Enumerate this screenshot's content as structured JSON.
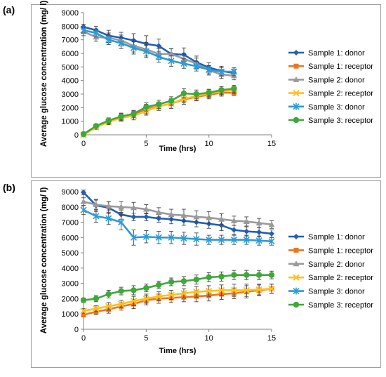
{
  "figure": {
    "panels": [
      {
        "label": "(a)"
      },
      {
        "label": "(b)"
      }
    ]
  },
  "colors": {
    "sample1_donor": "#1f5fb8",
    "sample1_receptor": "#f07422",
    "sample2_donor": "#9a9a9a",
    "sample2_receptor": "#ffc01f",
    "sample3_donor": "#2c9ad6",
    "sample3_receptor": "#3ea83a",
    "errorbar": "#444444",
    "frame": "#a0a0a0"
  },
  "chart_data": [
    {
      "type": "line",
      "panel": "(a)",
      "xlabel": "Time (hrs)",
      "ylabel": "Average glucose concentration (mg/ l)",
      "xlim": [
        0,
        15
      ],
      "ylim": [
        0,
        9000
      ],
      "xticks": [
        0,
        5,
        10,
        15
      ],
      "yticks": [
        0,
        1000,
        2000,
        3000,
        4000,
        5000,
        6000,
        7000,
        8000,
        9000
      ],
      "legend_position": "right",
      "series": [
        {
          "name": "Sample 1: donor",
          "marker": "diamond",
          "x": [
            0,
            1,
            2,
            3,
            4,
            5,
            6,
            7,
            8,
            9,
            10,
            11,
            12
          ],
          "y": [
            7950,
            7700,
            7300,
            7150,
            6950,
            6700,
            6550,
            5950,
            5900,
            5350,
            4950,
            4700,
            4550
          ],
          "err": [
            200,
            300,
            400,
            400,
            500,
            600,
            500,
            400,
            500,
            450,
            350,
            350,
            300
          ]
        },
        {
          "name": "Sample 1: receptor",
          "marker": "square",
          "x": [
            0,
            1,
            2,
            3,
            4,
            5,
            6,
            7,
            8,
            9,
            10,
            11,
            12
          ],
          "y": [
            50,
            600,
            1000,
            1300,
            1500,
            1900,
            2100,
            2300,
            2600,
            2800,
            2950,
            3100,
            3100
          ],
          "err": [
            80,
            150,
            200,
            250,
            250,
            350,
            300,
            350,
            350,
            300,
            300,
            250,
            200
          ]
        },
        {
          "name": "Sample 2: donor",
          "marker": "triangle",
          "x": [
            0,
            1,
            2,
            3,
            4,
            5,
            6,
            7,
            8,
            9,
            10,
            11,
            12
          ],
          "y": [
            7600,
            7200,
            7150,
            6950,
            6550,
            6300,
            5950,
            5950,
            5600,
            5250,
            4750,
            4450,
            4350
          ],
          "err": [
            300,
            300,
            350,
            400,
            450,
            500,
            400,
            400,
            400,
            400,
            350,
            300,
            300
          ]
        },
        {
          "name": "Sample 2: receptor",
          "marker": "x",
          "x": [
            0,
            1,
            2,
            3,
            4,
            5,
            6,
            7,
            8,
            9,
            10,
            11,
            12
          ],
          "y": [
            0,
            550,
            950,
            1250,
            1400,
            1750,
            2100,
            2300,
            2650,
            2850,
            3050,
            3200,
            3300
          ],
          "err": [
            80,
            150,
            200,
            250,
            300,
            300,
            300,
            350,
            300,
            300,
            300,
            250,
            250
          ]
        },
        {
          "name": "Sample 3: donor",
          "marker": "star",
          "x": [
            0,
            1,
            2,
            3,
            4,
            5,
            6,
            7,
            8,
            9,
            10,
            11,
            12
          ],
          "y": [
            7700,
            7500,
            7000,
            6750,
            6400,
            6150,
            5750,
            5450,
            5250,
            5050,
            4800,
            4650,
            4650
          ],
          "err": [
            200,
            300,
            350,
            400,
            450,
            450,
            400,
            400,
            350,
            350,
            300,
            300,
            300
          ]
        },
        {
          "name": "Sample 3: receptor",
          "marker": "circle",
          "x": [
            0,
            1,
            2,
            3,
            4,
            5,
            6,
            7,
            8,
            9,
            10,
            11,
            12
          ],
          "y": [
            50,
            650,
            1050,
            1350,
            1550,
            2050,
            2250,
            2500,
            3050,
            3000,
            3100,
            3300,
            3400
          ],
          "err": [
            80,
            150,
            200,
            250,
            250,
            300,
            300,
            300,
            350,
            300,
            250,
            250,
            250
          ]
        }
      ]
    },
    {
      "type": "line",
      "panel": "(b)",
      "xlabel": "Time (hrs)",
      "ylabel": "Average glucose concentration (mg/ l)",
      "xlim": [
        0,
        15
      ],
      "ylim": [
        0,
        9000
      ],
      "xticks": [
        0,
        5,
        10,
        15
      ],
      "yticks": [
        0,
        1000,
        2000,
        3000,
        4000,
        5000,
        6000,
        7000,
        8000,
        9000
      ],
      "legend_position": "right",
      "series": [
        {
          "name": "Sample 1: donor",
          "marker": "diamond",
          "x": [
            0,
            1,
            2,
            3,
            4,
            5,
            6,
            7,
            8,
            9,
            10,
            11,
            12,
            13,
            14,
            15
          ],
          "y": [
            8950,
            8100,
            7950,
            7500,
            7350,
            7350,
            7250,
            7200,
            7100,
            7000,
            6900,
            6800,
            6500,
            6400,
            6350,
            6250
          ],
          "err": [
            150,
            400,
            400,
            300,
            250,
            250,
            250,
            300,
            300,
            300,
            300,
            350,
            300,
            300,
            300,
            250
          ]
        },
        {
          "name": "Sample 1: receptor",
          "marker": "square",
          "x": [
            0,
            1,
            2,
            3,
            4,
            5,
            6,
            7,
            8,
            9,
            10,
            11,
            12,
            13,
            14,
            15
          ],
          "y": [
            950,
            1150,
            1300,
            1500,
            1650,
            1900,
            2000,
            2050,
            2100,
            2150,
            2200,
            2300,
            2350,
            2450,
            2550,
            2650
          ],
          "err": [
            150,
            200,
            250,
            250,
            300,
            300,
            300,
            300,
            300,
            350,
            350,
            350,
            350,
            400,
            350,
            300
          ]
        },
        {
          "name": "Sample 2: donor",
          "marker": "triangle",
          "x": [
            0,
            1,
            2,
            3,
            4,
            5,
            6,
            7,
            8,
            9,
            10,
            11,
            12,
            13,
            14,
            15
          ],
          "y": [
            8350,
            8150,
            8050,
            8000,
            7950,
            7850,
            7650,
            7500,
            7450,
            7350,
            7300,
            7200,
            7100,
            7050,
            6950,
            6850
          ],
          "err": [
            250,
            300,
            300,
            350,
            350,
            300,
            300,
            350,
            400,
            400,
            400,
            350,
            300,
            300,
            300,
            250
          ]
        },
        {
          "name": "Sample 2: receptor",
          "marker": "x",
          "x": [
            0,
            1,
            2,
            3,
            4,
            5,
            6,
            7,
            8,
            9,
            10,
            11,
            12,
            13,
            14,
            15
          ],
          "y": [
            1200,
            1350,
            1500,
            1650,
            1850,
            2000,
            2150,
            2250,
            2350,
            2450,
            2500,
            2550,
            2550,
            2550,
            2600,
            2650
          ],
          "err": [
            150,
            200,
            250,
            250,
            300,
            300,
            300,
            300,
            300,
            350,
            350,
            350,
            400,
            400,
            350,
            300
          ]
        },
        {
          "name": "Sample 3: donor",
          "marker": "star",
          "x": [
            0,
            1,
            2,
            3,
            4,
            5,
            6,
            7,
            8,
            9,
            10,
            11,
            12,
            13,
            14,
            15
          ],
          "y": [
            7800,
            7400,
            7250,
            7000,
            6000,
            6050,
            6000,
            6000,
            5950,
            5900,
            5850,
            5850,
            5850,
            5850,
            5800,
            5750
          ],
          "err": [
            300,
            400,
            400,
            500,
            500,
            400,
            400,
            400,
            400,
            400,
            300,
            300,
            300,
            300,
            300,
            250
          ]
        },
        {
          "name": "Sample 3: receptor",
          "marker": "circle",
          "x": [
            0,
            1,
            2,
            3,
            4,
            5,
            6,
            7,
            8,
            9,
            10,
            11,
            12,
            13,
            14,
            15
          ],
          "y": [
            1900,
            2000,
            2300,
            2500,
            2550,
            2700,
            2900,
            3100,
            3150,
            3250,
            3400,
            3450,
            3550,
            3550,
            3550,
            3550
          ],
          "err": [
            150,
            200,
            250,
            250,
            300,
            250,
            250,
            250,
            300,
            300,
            300,
            300,
            300,
            300,
            300,
            250
          ]
        }
      ]
    }
  ]
}
